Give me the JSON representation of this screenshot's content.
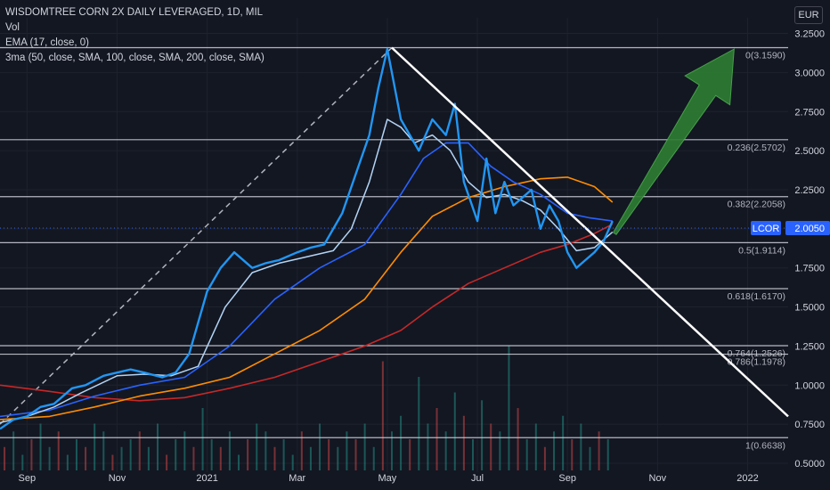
{
  "legend": {
    "title": "WISDOMTREE CORN 2X DAILY LEVERAGED, 1D, MIL",
    "vol": "Vol",
    "ema": "EMA (17, close, 0)",
    "ma3": "3ma (50, close, SMA, 100, close, SMA, 200, close, SMA)"
  },
  "currency": "EUR",
  "colors": {
    "background": "#131722",
    "price": "#2196f3",
    "ema": "#b3d4f5",
    "sma50": "#2962ff",
    "sma100": "#ff8c00",
    "sma200": "#c62828",
    "fib": "#d1d4dc",
    "trendline": "#ffffff",
    "arrow": "#2e7d32",
    "lastPriceTag": "#2962ff"
  },
  "chart_data": {
    "type": "line",
    "title": "WISDOMTREE CORN 2X DAILY LEVERAGED, 1D, MIL",
    "ylim": [
      0.5,
      3.35
    ],
    "y_ticks": [
      "3.2500",
      "3.0000",
      "2.7500",
      "2.5000",
      "2.2500",
      "2.0000",
      "1.7500",
      "1.5000",
      "1.2500",
      "1.0000",
      "0.7500",
      "0.5000"
    ],
    "x_ticks": [
      "Sep",
      "Nov",
      "2021",
      "Mar",
      "May",
      "Jul",
      "Sep",
      "Nov",
      "2022"
    ],
    "x_tick_months": [
      0,
      2,
      4,
      6,
      8,
      10,
      12,
      14,
      16
    ],
    "x_range_months": [
      -0.6,
      16.9
    ],
    "fib_levels": [
      {
        "label": "0(3.1590)",
        "value": 3.159
      },
      {
        "label": "0.236(2.5702)",
        "value": 2.5702
      },
      {
        "label": "0.382(2.2058)",
        "value": 2.2058
      },
      {
        "label": "0.5(1.9114)",
        "value": 1.9114
      },
      {
        "label": "0.618(1.6170)",
        "value": 1.617
      },
      {
        "label": "0.764(1.2526)",
        "value": 1.2526
      },
      {
        "label": "0.786(1.1978)",
        "value": 1.1978
      },
      {
        "label": "1(0.6638)",
        "value": 0.6638
      }
    ],
    "last_price": {
      "label": "LCOR",
      "value": "2.0050",
      "y": 2.005
    },
    "series": [
      {
        "name": "Price",
        "x": [
          -0.6,
          -0.3,
          0,
          0.3,
          0.6,
          1,
          1.3,
          1.7,
          2,
          2.3,
          2.6,
          3,
          3.3,
          3.6,
          4,
          4.3,
          4.6,
          5,
          5.3,
          5.6,
          6,
          6.3,
          6.6,
          7,
          7.3,
          7.6,
          7.8,
          8,
          8.1,
          8.3,
          8.5,
          8.7,
          9,
          9.3,
          9.5,
          9.7,
          10,
          10.2,
          10.4,
          10.6,
          10.8,
          11,
          11.2,
          11.4,
          11.6,
          11.8,
          12,
          12.2,
          12.4,
          12.6,
          12.8,
          13
        ],
        "y": [
          0.72,
          0.78,
          0.8,
          0.86,
          0.88,
          0.98,
          1.0,
          1.06,
          1.08,
          1.1,
          1.08,
          1.05,
          1.08,
          1.2,
          1.6,
          1.75,
          1.85,
          1.75,
          1.78,
          1.8,
          1.85,
          1.88,
          1.9,
          2.1,
          2.35,
          2.6,
          2.9,
          3.15,
          3.0,
          2.7,
          2.6,
          2.5,
          2.7,
          2.6,
          2.8,
          2.3,
          2.05,
          2.45,
          2.1,
          2.3,
          2.15,
          2.2,
          2.25,
          2.0,
          2.15,
          2.05,
          1.85,
          1.75,
          1.8,
          1.85,
          1.92,
          2.05
        ]
      },
      {
        "name": "EMA 17",
        "x": [
          -0.6,
          0,
          0.6,
          1.2,
          2,
          2.6,
          3.2,
          3.8,
          4.4,
          5,
          5.6,
          6.2,
          6.8,
          7.2,
          7.6,
          8,
          8.3,
          8.6,
          9,
          9.4,
          9.8,
          10.2,
          10.6,
          11,
          11.4,
          11.8,
          12.2,
          12.6,
          13
        ],
        "y": [
          0.76,
          0.8,
          0.86,
          0.95,
          1.06,
          1.07,
          1.06,
          1.12,
          1.5,
          1.72,
          1.78,
          1.82,
          1.86,
          2.0,
          2.3,
          2.7,
          2.65,
          2.55,
          2.6,
          2.5,
          2.3,
          2.2,
          2.22,
          2.18,
          2.12,
          2.0,
          1.86,
          1.88,
          1.98
        ]
      },
      {
        "name": "SMA 50",
        "x": [
          -0.6,
          0.5,
          1.5,
          2.5,
          3.5,
          4.5,
          5.5,
          6.5,
          7.5,
          8.3,
          8.8,
          9.3,
          9.8,
          10.3,
          10.8,
          11.4,
          12,
          12.5,
          13
        ],
        "y": [
          0.8,
          0.84,
          0.93,
          1.0,
          1.05,
          1.25,
          1.55,
          1.75,
          1.9,
          2.22,
          2.45,
          2.55,
          2.55,
          2.4,
          2.3,
          2.22,
          2.1,
          2.07,
          2.05
        ]
      },
      {
        "name": "SMA 100",
        "x": [
          -0.6,
          0.5,
          1.5,
          2.5,
          3.5,
          4.5,
          5.5,
          6.5,
          7.5,
          8.3,
          9,
          9.8,
          10.6,
          11.4,
          12,
          12.6,
          13
        ],
        "y": [
          0.78,
          0.8,
          0.86,
          0.93,
          0.98,
          1.05,
          1.2,
          1.35,
          1.55,
          1.85,
          2.08,
          2.2,
          2.27,
          2.32,
          2.33,
          2.27,
          2.17
        ]
      },
      {
        "name": "SMA 200",
        "x": [
          -0.6,
          0.5,
          1.5,
          2.5,
          3.5,
          4.5,
          5.5,
          6.5,
          7.5,
          8.3,
          9,
          9.8,
          10.6,
          11.4,
          12,
          12.6,
          13
        ],
        "y": [
          1.0,
          0.96,
          0.92,
          0.9,
          0.92,
          0.98,
          1.05,
          1.15,
          1.25,
          1.35,
          1.5,
          1.65,
          1.75,
          1.85,
          1.9,
          1.97,
          2.03
        ]
      }
    ],
    "volume_months": [
      -0.5,
      -0.3,
      -0.1,
      0.1,
      0.3,
      0.5,
      0.7,
      0.9,
      1.1,
      1.3,
      1.5,
      1.7,
      1.9,
      2.1,
      2.3,
      2.5,
      2.7,
      2.9,
      3.1,
      3.3,
      3.5,
      3.7,
      3.9,
      4.1,
      4.3,
      4.5,
      4.7,
      4.9,
      5.1,
      5.3,
      5.5,
      5.7,
      5.9,
      6.1,
      6.3,
      6.5,
      6.7,
      6.9,
      7.1,
      7.3,
      7.5,
      7.7,
      7.9,
      8.1,
      8.3,
      8.5,
      8.7,
      8.9,
      9.1,
      9.3,
      9.5,
      9.7,
      9.9,
      10.1,
      10.3,
      10.5,
      10.7,
      10.9,
      11.1,
      11.3,
      11.5,
      11.7,
      11.9,
      12.1,
      12.3,
      12.5,
      12.7,
      12.9
    ],
    "volume_values": [
      0.3,
      0.5,
      0.2,
      0.4,
      0.6,
      0.3,
      0.5,
      0.2,
      0.4,
      0.3,
      0.6,
      0.5,
      0.2,
      0.3,
      0.4,
      0.5,
      0.3,
      0.6,
      0.2,
      0.4,
      0.5,
      0.3,
      0.8,
      0.4,
      0.3,
      0.5,
      0.2,
      0.4,
      0.6,
      0.5,
      0.3,
      0.4,
      0.2,
      0.5,
      0.3,
      0.6,
      0.4,
      0.3,
      0.5,
      0.4,
      0.6,
      0.3,
      1.4,
      0.5,
      0.7,
      0.4,
      1.2,
      0.6,
      0.8,
      0.5,
      1.0,
      0.7,
      0.4,
      0.9,
      0.6,
      0.5,
      1.6,
      0.8,
      0.4,
      0.6,
      0.3,
      0.5,
      0.7,
      0.4,
      0.6,
      0.3,
      0.5,
      0.4
    ],
    "trendline": {
      "start": [
        8.1,
        3.159
      ],
      "end": [
        16.9,
        0.8
      ]
    },
    "dashed_line": {
      "start": [
        -0.6,
        0.75
      ],
      "end": [
        8.1,
        3.159
      ]
    },
    "arrow": {
      "start": [
        13.05,
        1.97
      ],
      "end": [
        15.7,
        3.15
      ]
    }
  }
}
